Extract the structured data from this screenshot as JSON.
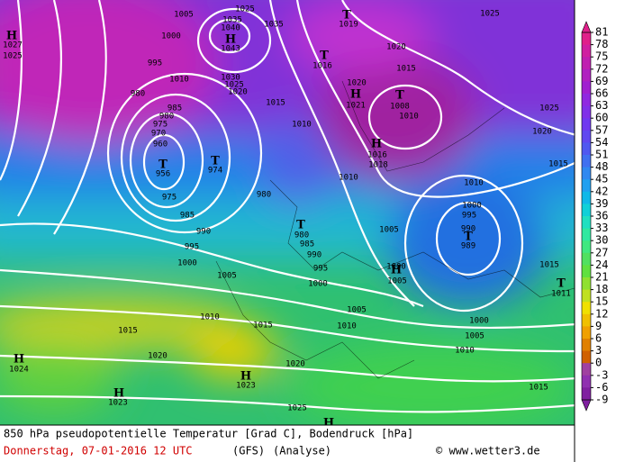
{
  "caption": {
    "line1": "850 hPa pseudopotentielle Temperatur [Grad C], Bodendruck [hPa]",
    "date": "Donnerstag, 07-01-2016  12 UTC",
    "model": "(GFS)",
    "run": "(Analyse)",
    "credit": "© www.wetter3.de"
  },
  "colorbar": {
    "ticks": [
      81,
      78,
      75,
      72,
      69,
      66,
      63,
      60,
      57,
      54,
      51,
      48,
      45,
      42,
      39,
      36,
      33,
      30,
      27,
      24,
      21,
      18,
      15,
      12,
      9,
      6,
      3,
      0,
      -3,
      -6,
      -9
    ],
    "colors": [
      "#e0208a",
      "#d020a0",
      "#c020b0",
      "#b020c0",
      "#a020d0",
      "#9028e0",
      "#8030e8",
      "#7038f0",
      "#6048f0",
      "#5058f0",
      "#4070f0",
      "#3088f0",
      "#20a0f0",
      "#10b8e8",
      "#10d0d8",
      "#20e0c0",
      "#30e8a0",
      "#40e880",
      "#50e060",
      "#60e040",
      "#90e030",
      "#c0e020",
      "#f0e000",
      "#f0c000",
      "#f0a000",
      "#e08000",
      "#d06000",
      "#a040a0",
      "#9030b0",
      "#8020a0"
    ]
  },
  "pressure_labels": [
    1005,
    1025,
    1035,
    1040,
    1035,
    1000,
    1027,
    1025,
    1043,
    995,
    1010,
    1030,
    1025,
    1020,
    1015,
    980,
    985,
    980,
    975,
    970,
    960,
    956,
    974,
    975,
    985,
    990,
    995,
    1000,
    1005,
    1010,
    1010,
    980,
    980,
    985,
    990,
    995,
    1000,
    1005,
    1010,
    1000,
    995,
    989,
    990,
    1005,
    1000,
    1005,
    1010,
    1015,
    1015,
    1010,
    1000,
    1005,
    1010,
    1020,
    1020,
    1023,
    1024,
    1023,
    1025,
    1015,
    1015,
    1011,
    1015,
    1020,
    1025,
    1025,
    1020,
    1015,
    1016,
    1019,
    1018,
    1016,
    1021,
    1020,
    1008,
    1010
  ],
  "centers": [
    "H",
    "H",
    "T",
    "T",
    "H",
    "T",
    "H",
    "T",
    "T",
    "T",
    "T",
    "H",
    "T",
    "H",
    "H",
    "H",
    "H"
  ]
}
